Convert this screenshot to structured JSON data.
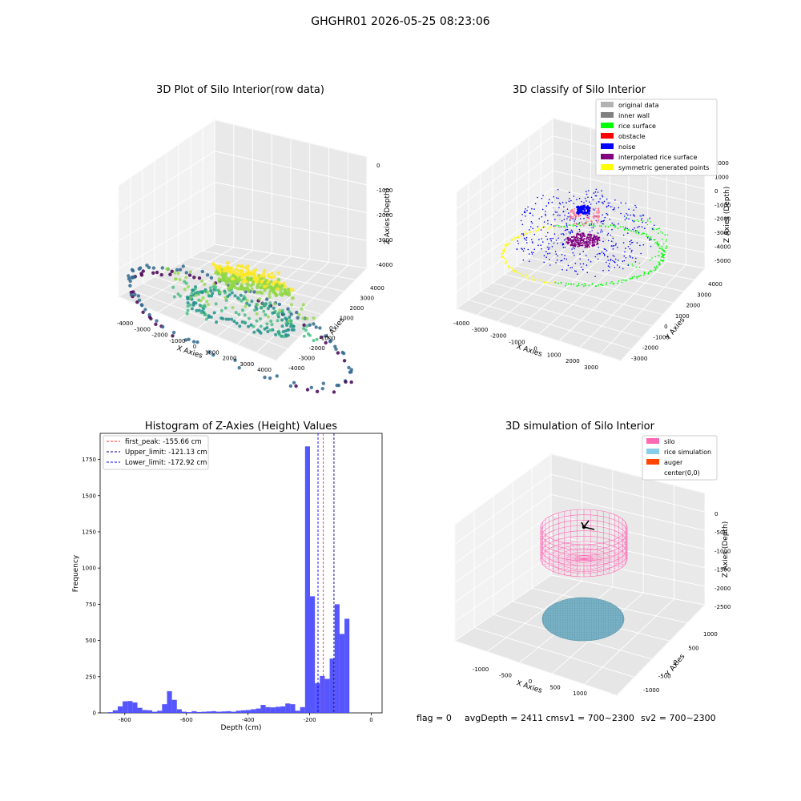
{
  "figure": {
    "suptitle": "GHGHR01 2026-05-25 08:23:06"
  },
  "footer": {
    "flag": "flag = 0",
    "avg": "avgDepth = 2411 cmsv1 = 700~2300",
    "sv2": "sv2 = 700~2300"
  },
  "chart_data": [
    {
      "type": "scatter",
      "panel": "raw",
      "title": "3D Plot of Silo Interior(row data)",
      "xlabel": "X Axies",
      "ylabel": "Y Axies",
      "zlabel": "Z Axies (Depth)",
      "xticks": [
        "-4000",
        "-3000",
        "-2000",
        "-1000",
        "0",
        "1000",
        "2000",
        "3000",
        "4000"
      ],
      "yticks": [
        "-4000",
        "-3000",
        "-2000",
        "-1000",
        "0",
        "1000",
        "2000",
        "3000",
        "4000"
      ],
      "zticks": [
        "0",
        "-1000",
        "-2000",
        "-3000",
        "-4000"
      ],
      "xlim": [
        -4000,
        4000
      ],
      "ylim": [
        -4000,
        4000
      ],
      "zlim": [
        -4500,
        0
      ],
      "colormap": [
        "#440154",
        "#31688e",
        "#21918c",
        "#35b779",
        "#90d743",
        "#fde725"
      ]
    },
    {
      "type": "scatter",
      "panel": "classify",
      "title": "3D classify of Silo Interior",
      "xlabel": "X Axies",
      "ylabel": "Y Axies",
      "zlabel": "Z Axies (Depth)",
      "xticks": [
        "-4000",
        "-3000",
        "-2000",
        "-1000",
        "0",
        "1000",
        "2000",
        "3000"
      ],
      "yticks": [
        "-3000",
        "-2000",
        "-1000",
        "0",
        "1000",
        "2000",
        "3000",
        "4000"
      ],
      "zticks": [
        "2000",
        "1000",
        "0",
        "-1000",
        "-2000",
        "-3000",
        "-4000",
        "-5000"
      ],
      "legend": [
        {
          "label": "original data",
          "color": "#b3b3b3"
        },
        {
          "label": "inner wall",
          "color": "#808080"
        },
        {
          "label": "rice surface",
          "color": "#00ff00"
        },
        {
          "label": "obstacle",
          "color": "#ff0000"
        },
        {
          "label": "noise",
          "color": "#0000ff"
        },
        {
          "label": "interpolated rice surface",
          "color": "#800080"
        },
        {
          "label": "symmetric generated points",
          "color": "#ffff00"
        }
      ]
    },
    {
      "type": "bar",
      "panel": "histogram",
      "title": "Histogram of Z-Axies (Height) Values",
      "xlabel": "Depth (cm)",
      "ylabel": "Frequency",
      "xlim": [
        -880,
        35
      ],
      "ylim": [
        0,
        1930
      ],
      "xticks": [
        -800,
        -600,
        -400,
        -200,
        0
      ],
      "yticks": [
        0,
        250,
        500,
        750,
        1000,
        1250,
        1500,
        1750
      ],
      "bar_color": "#4d4dff",
      "bin_start": -855,
      "bin_width": 16,
      "values": [
        5,
        18,
        45,
        80,
        82,
        72,
        35,
        20,
        18,
        8,
        15,
        60,
        150,
        90,
        25,
        8,
        5,
        12,
        6,
        8,
        10,
        12,
        8,
        10,
        12,
        8,
        15,
        18,
        20,
        25,
        30,
        55,
        40,
        38,
        42,
        45,
        65,
        60,
        15,
        40,
        1840,
        805,
        205,
        255,
        235,
        375,
        750,
        545,
        650,
        0
      ],
      "vlines": [
        {
          "label": "first_peak: -155.66 cm",
          "x": -155.66,
          "color": "#ff3030"
        },
        {
          "label": "Upper_limit: -121.13 cm",
          "x": -121.13,
          "color": "#000080"
        },
        {
          "label": "Lower_limit: -172.92 cm",
          "x": -172.92,
          "color": "#0000ff"
        }
      ]
    },
    {
      "type": "scatter",
      "panel": "simulation",
      "title": "3D simulation of Silo Interior",
      "xlabel": "X Axies",
      "ylabel": "Y Axies",
      "zlabel": "Z Axies (Depth)",
      "xticks": [
        "-1000",
        "-500",
        "0",
        "500",
        "1000"
      ],
      "yticks": [
        "-1000",
        "-500",
        "0",
        "500",
        "1000"
      ],
      "zticks": [
        "0",
        "-500",
        "-1000",
        "-1500",
        "-2000",
        "-2500"
      ],
      "legend": [
        {
          "label": "silo",
          "color": "#ff69b4"
        },
        {
          "label": "rice simulation",
          "color": "#87ceeb"
        },
        {
          "label": "auger",
          "color": "#ff4500"
        },
        {
          "label": "center(0,0)",
          "color": "#ffffff"
        }
      ]
    }
  ]
}
